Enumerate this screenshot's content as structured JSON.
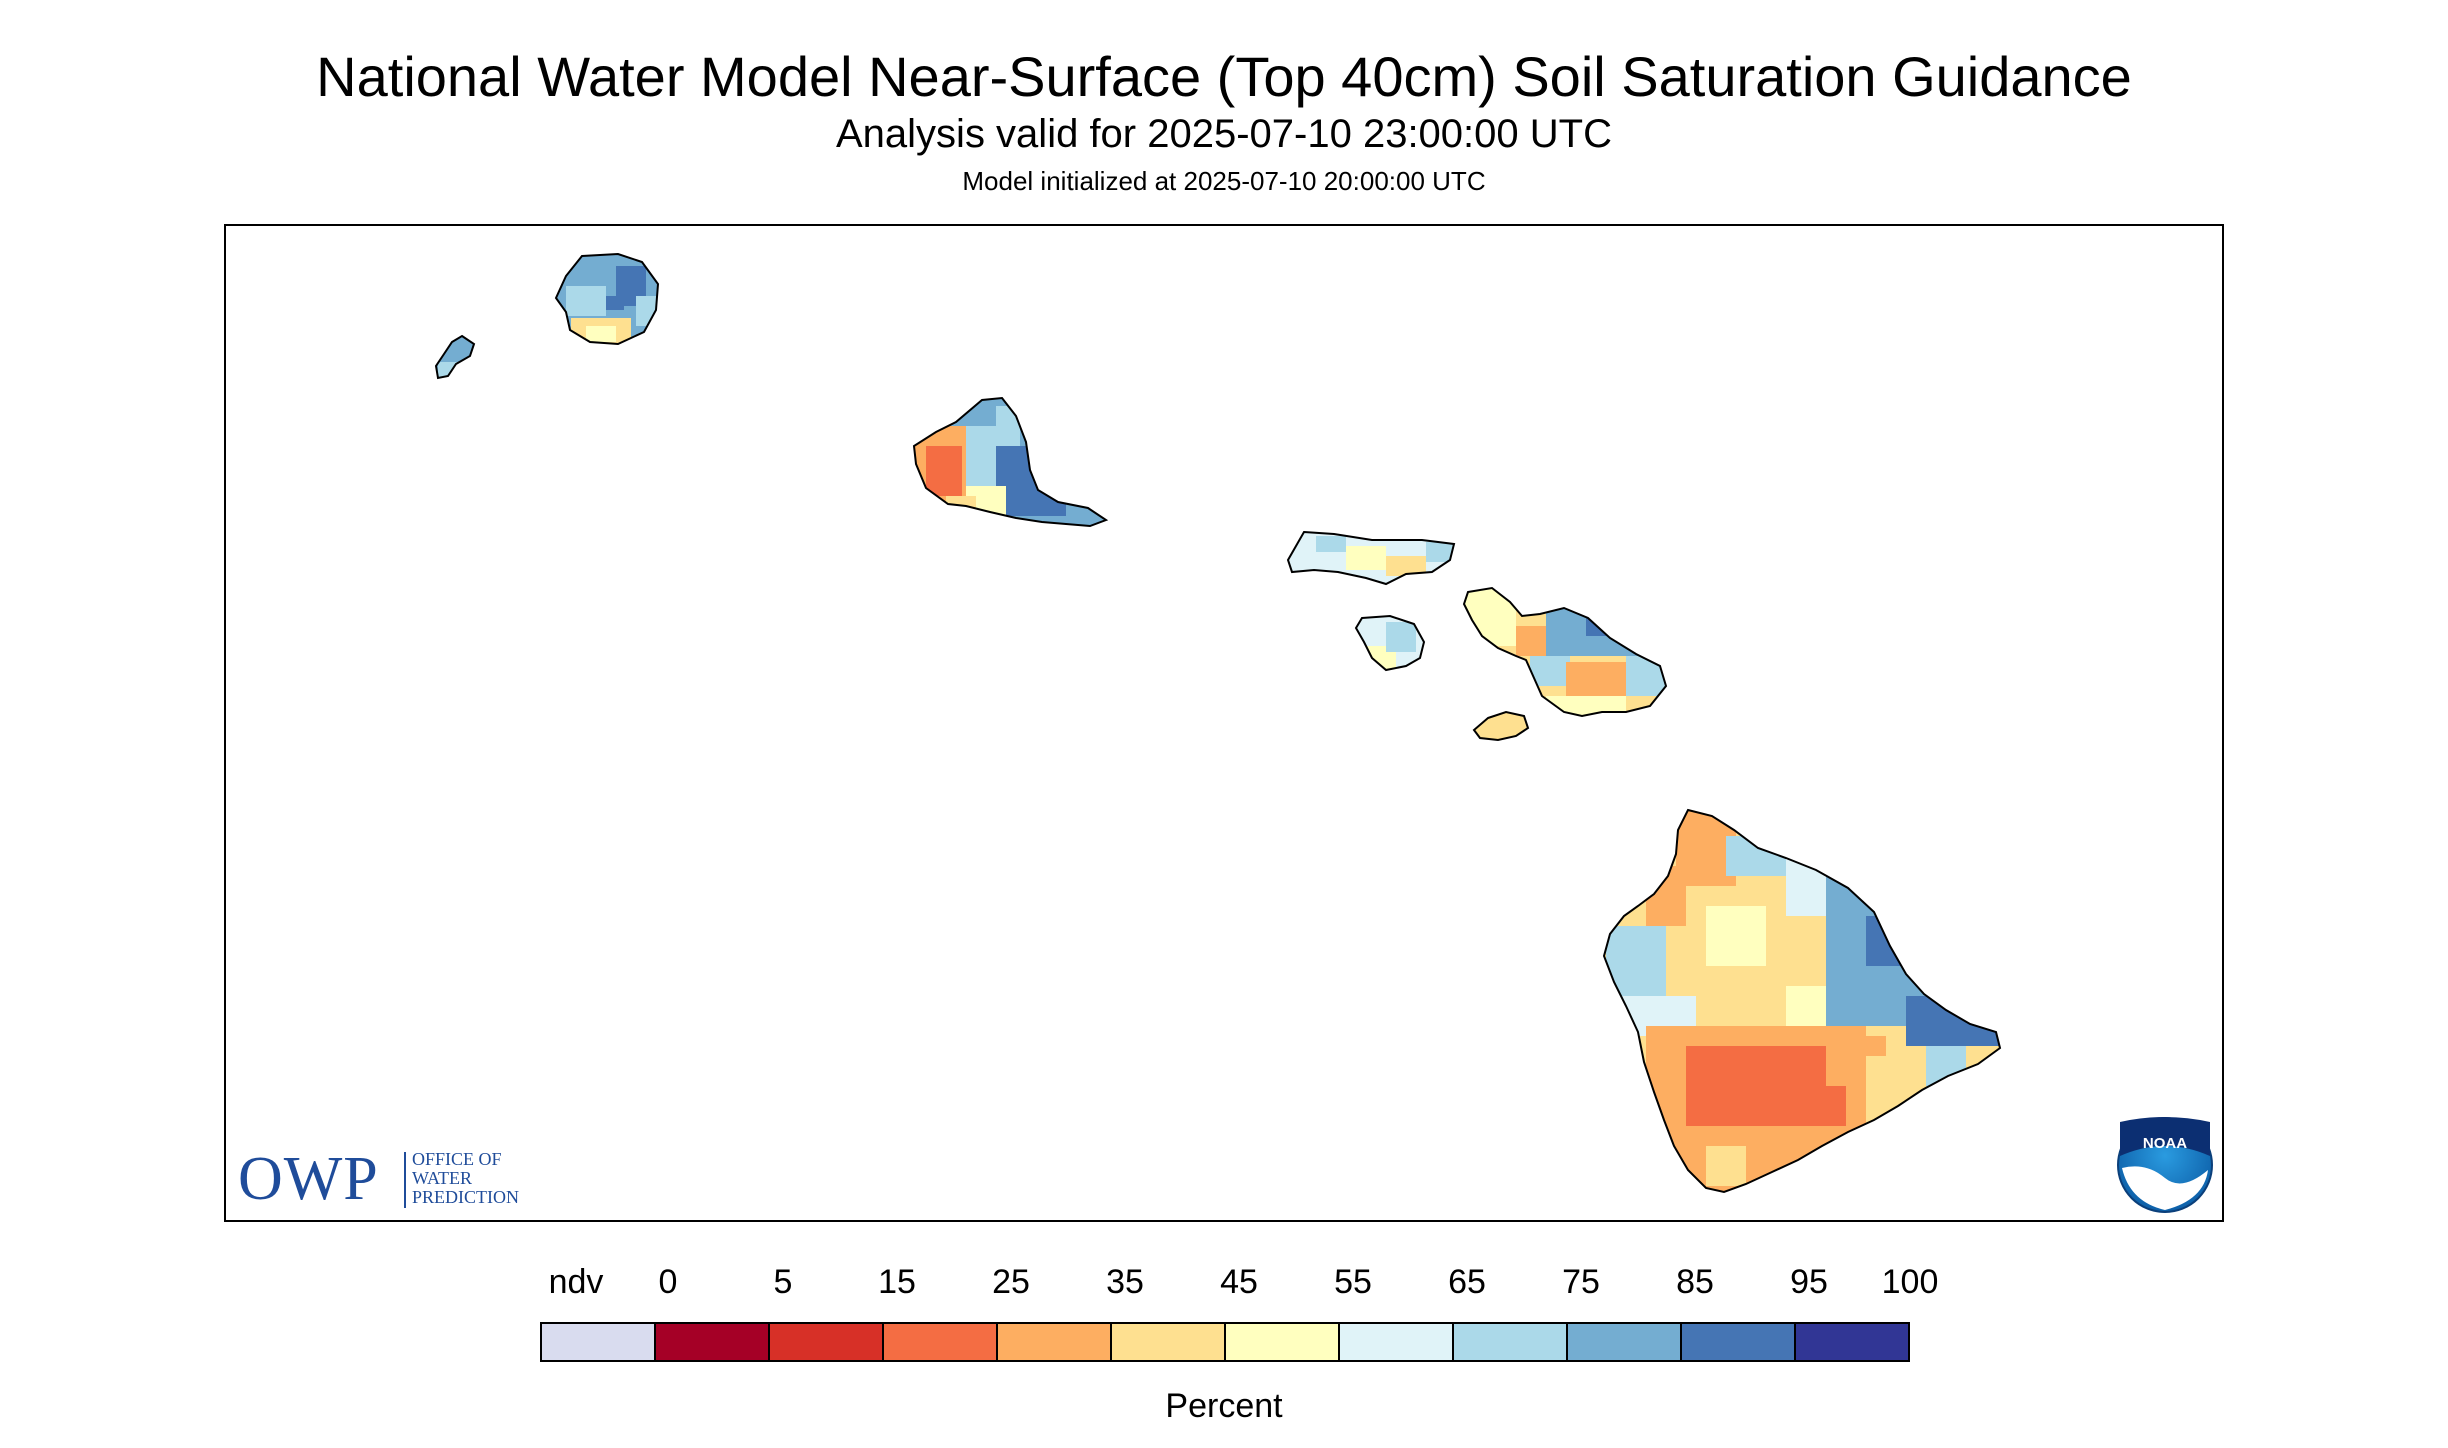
{
  "header": {
    "title": "National Water Model Near-Surface (Top 40cm) Soil Saturation Guidance",
    "subtitle": "Analysis valid for 2025-07-10 23:00:00 UTC",
    "init": "Model initialized at 2025-07-10 20:00:00 UTC"
  },
  "logos": {
    "owp_text": "OWP",
    "owp_line1": "OFFICE OF",
    "owp_line2": "WATER",
    "owp_line3": "PREDICTION",
    "noaa_text": "NOAA"
  },
  "legend": {
    "label": "Percent",
    "ndv_label": "ndv",
    "ticks": [
      "0",
      "5",
      "15",
      "25",
      "35",
      "45",
      "55",
      "65",
      "75",
      "85",
      "95",
      "100"
    ],
    "colors": [
      "#d9dcef",
      "#a50026",
      "#d73027",
      "#f46d43",
      "#fdae61",
      "#fee090",
      "#ffffbf",
      "#e0f3f8",
      "#abd9e9",
      "#74add1",
      "#4575b4",
      "#313695"
    ]
  },
  "map": {
    "region": "Hawaii",
    "islands": [
      "Niihau",
      "Kauai",
      "Oahu",
      "Molokai",
      "Lanai",
      "Maui",
      "Kahoolawe",
      "Hawaii"
    ]
  }
}
